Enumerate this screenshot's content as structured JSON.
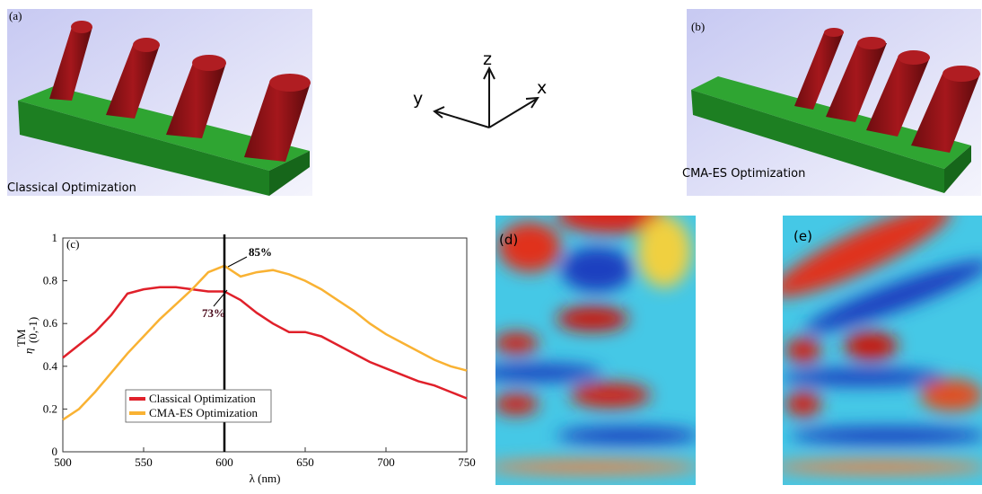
{
  "panels": {
    "a": {
      "label": "(a)",
      "caption": "Classical Optimization"
    },
    "b": {
      "label": "(b)",
      "caption": "CMA-ES Optimization"
    },
    "d": {
      "label": "(d)"
    },
    "e": {
      "label": "(e)"
    },
    "axes": {
      "z": "z",
      "x": "x",
      "y": "y"
    }
  },
  "chart_data": {
    "type": "line",
    "panel_label": "(c)",
    "xlabel": "λ (nm)",
    "ylabel": "η",
    "ylabel_sup": "TM",
    "ylabel_sub": "(0,-1)",
    "x": [
      500,
      510,
      520,
      530,
      540,
      550,
      560,
      570,
      580,
      590,
      600,
      610,
      620,
      630,
      640,
      650,
      660,
      670,
      680,
      690,
      700,
      710,
      720,
      730,
      740,
      750
    ],
    "series": [
      {
        "name": "Classical Optimization",
        "color": "#e0202a",
        "values": [
          0.44,
          0.5,
          0.56,
          0.64,
          0.74,
          0.76,
          0.77,
          0.77,
          0.76,
          0.75,
          0.75,
          0.71,
          0.65,
          0.6,
          0.56,
          0.56,
          0.54,
          0.5,
          0.46,
          0.42,
          0.39,
          0.36,
          0.33,
          0.31,
          0.28,
          0.25
        ]
      },
      {
        "name": "CMA-ES Optimization",
        "color": "#f9b233",
        "values": [
          0.15,
          0.2,
          0.28,
          0.37,
          0.46,
          0.54,
          0.62,
          0.69,
          0.76,
          0.84,
          0.87,
          0.82,
          0.84,
          0.85,
          0.83,
          0.8,
          0.76,
          0.71,
          0.66,
          0.6,
          0.55,
          0.51,
          0.47,
          0.43,
          0.4,
          0.38
        ]
      }
    ],
    "vline": 600,
    "annotations": [
      "85%",
      "73%"
    ],
    "xlim": [
      500,
      750
    ],
    "xticks": [
      500,
      550,
      600,
      650,
      700,
      750
    ],
    "ylim": [
      0,
      1
    ],
    "yticks": [
      0,
      0.2,
      0.4,
      0.6,
      0.8,
      1
    ],
    "grid": false,
    "legend": "lower left"
  }
}
